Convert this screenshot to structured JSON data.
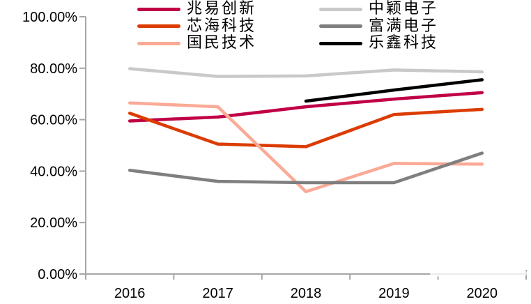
{
  "chart_data": {
    "type": "line",
    "title": "",
    "categories": [
      "2016",
      "2017",
      "2018",
      "2019",
      "2020"
    ],
    "series": [
      {
        "name": "兆易创新",
        "color": "#C00046",
        "values": [
          59.5,
          61.0,
          65.0,
          68.0,
          70.5
        ]
      },
      {
        "name": "芯海科技",
        "color": "#DC3C00",
        "values": [
          62.5,
          50.5,
          49.5,
          62.0,
          64.0
        ]
      },
      {
        "name": "国民技术",
        "color": "#FAAA96",
        "values": [
          66.5,
          65.0,
          32.0,
          43.0,
          42.7
        ]
      },
      {
        "name": "中颖电子",
        "color": "#C9C9C9",
        "values": [
          79.8,
          76.8,
          77.0,
          79.3,
          78.6
        ]
      },
      {
        "name": "富满电子",
        "color": "#7F7F7F",
        "values": [
          40.3,
          36.0,
          35.5,
          35.5,
          47.0
        ]
      },
      {
        "name": "乐鑫科技",
        "color": "#000000",
        "values": [
          null,
          null,
          67.2,
          71.5,
          75.5
        ]
      }
    ],
    "xlabel": "",
    "ylabel": "",
    "ylim": [
      0,
      100
    ],
    "y_ticks": [
      {
        "value": 0,
        "label": "0.00%"
      },
      {
        "value": 20,
        "label": "20.00%"
      },
      {
        "value": 40,
        "label": "40.00%"
      },
      {
        "value": 60,
        "label": "60.00%"
      },
      {
        "value": 80,
        "label": "80.00%"
      },
      {
        "value": 100,
        "label": "100.00%"
      }
    ],
    "grid": false,
    "legend_position": "top",
    "axis_color": "#A6A6A6"
  }
}
